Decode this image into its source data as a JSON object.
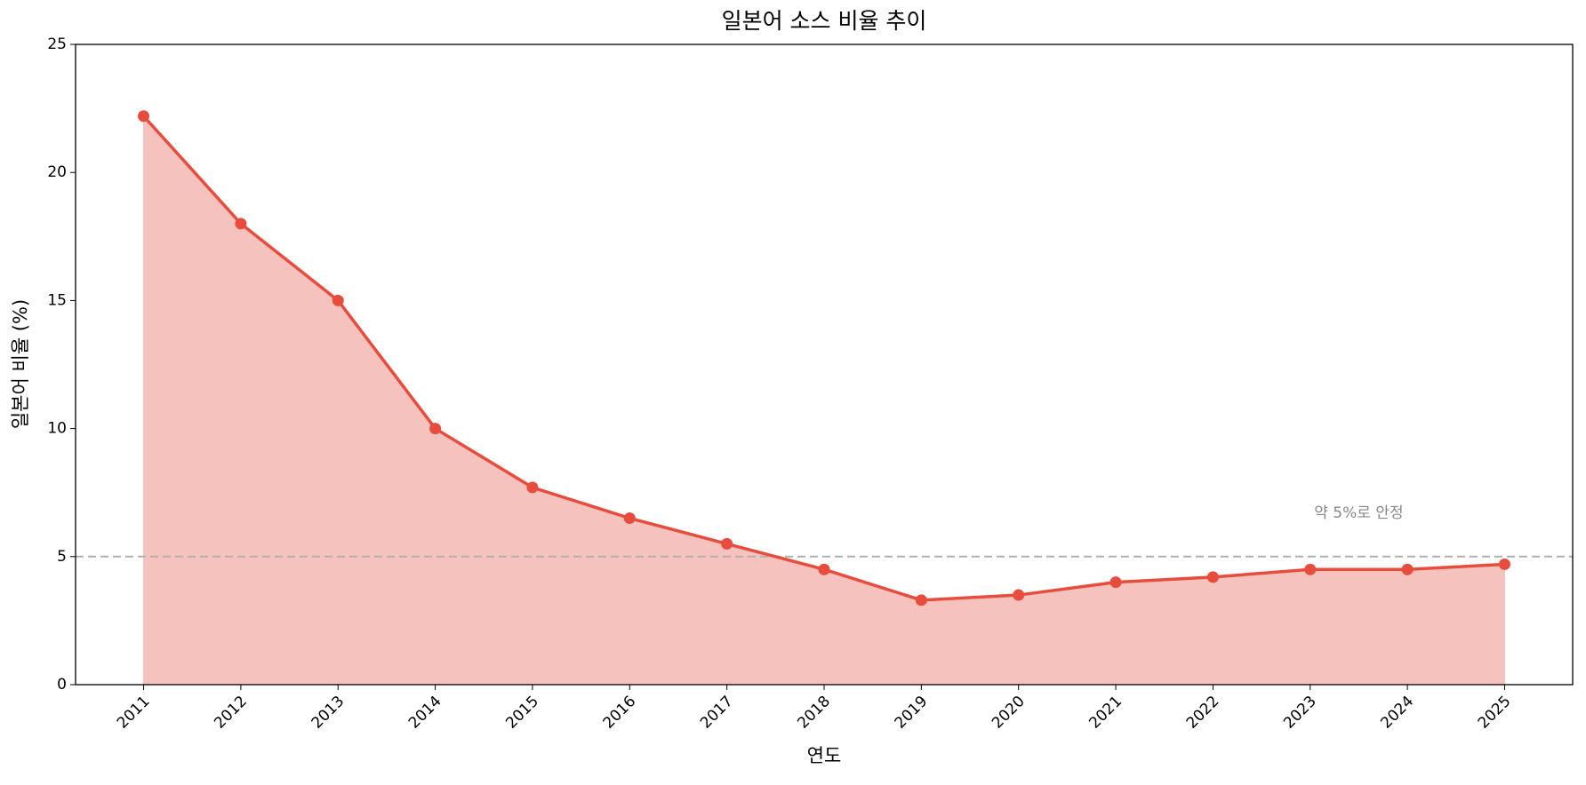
{
  "chart_data": {
    "type": "line",
    "title": "일본어 소스 비율 추이",
    "xlabel": "연도",
    "ylabel": "일본어 비율 (%)",
    "x": [
      2011,
      2012,
      2013,
      2014,
      2015,
      2016,
      2017,
      2018,
      2019,
      2020,
      2021,
      2022,
      2023,
      2024,
      2025
    ],
    "values": [
      22.2,
      18,
      15,
      10,
      7.7,
      6.5,
      5.5,
      4.5,
      3.3,
      3.5,
      4.0,
      4.2,
      4.5,
      4.5,
      4.7
    ],
    "color": "#e74c3c",
    "fill": true,
    "fill_color": "#f5c2bd",
    "xlim": [
      2010.3,
      2025.7
    ],
    "xticks": [
      2011,
      2012,
      2013,
      2014,
      2015,
      2016,
      2017,
      2018,
      2019,
      2020,
      2021,
      2022,
      2023,
      2024,
      2025
    ],
    "ylim": [
      0,
      25
    ],
    "yticks": [
      0,
      5,
      10,
      15,
      20,
      25
    ],
    "grid": false,
    "hline": {
      "value": 5,
      "color": "#b0b0b0"
    },
    "annotation": {
      "text": "약 5%로 안정",
      "x": 2023.5,
      "y": 6.7,
      "color": "#888888"
    }
  }
}
